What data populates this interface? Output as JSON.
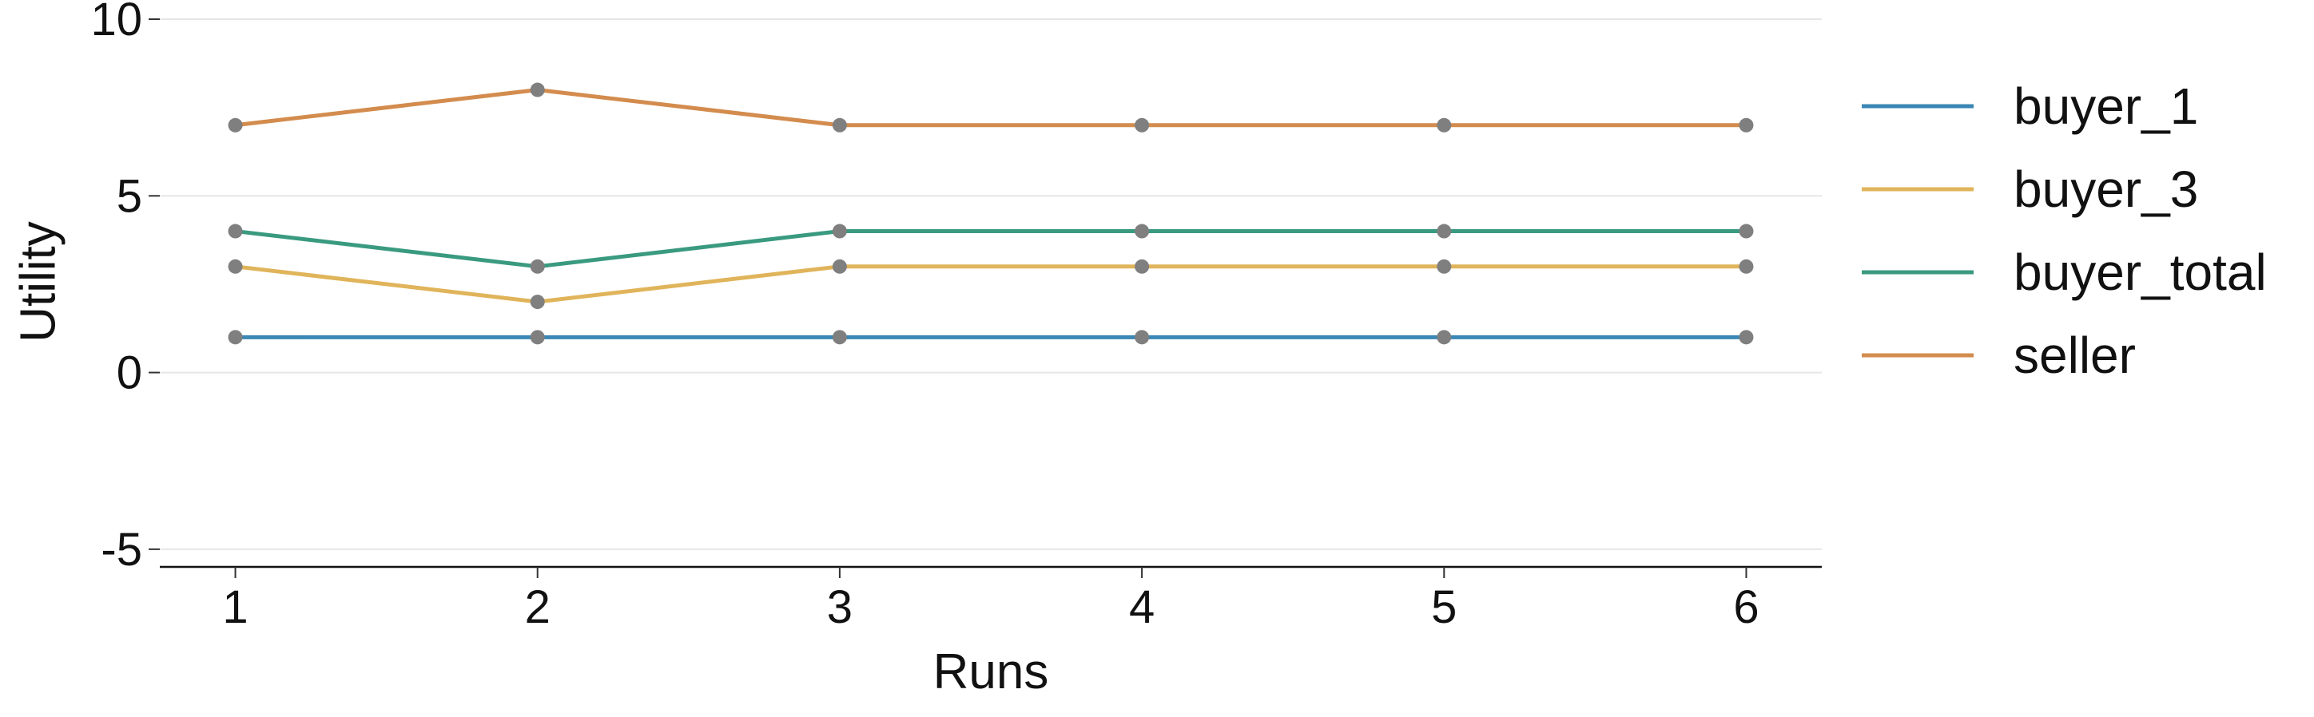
{
  "chart_data": {
    "type": "line",
    "xlabel": "Runs",
    "ylabel": "Utility",
    "x": [
      1,
      2,
      3,
      4,
      5,
      6
    ],
    "xticks": [
      "1",
      "2",
      "3",
      "4",
      "5",
      "6"
    ],
    "yticks": [
      "-5",
      "0",
      "5",
      "10"
    ],
    "ylim": [
      -5.5,
      10
    ],
    "xlim": [
      0.75,
      6.25
    ],
    "grid": "horizontal",
    "legend_position": "right",
    "marker_color": "#7f7f7f",
    "series": [
      {
        "name": "buyer_1",
        "color": "#3a86b4",
        "values": [
          1,
          1,
          1,
          1,
          1,
          1
        ]
      },
      {
        "name": "buyer_3",
        "color": "#e0b45a",
        "values": [
          3,
          2,
          3,
          3,
          3,
          3
        ]
      },
      {
        "name": "buyer_total",
        "color": "#3a9a80",
        "values": [
          4,
          3,
          4,
          4,
          4,
          4
        ]
      },
      {
        "name": "seller",
        "color": "#d38c4e",
        "values": [
          7,
          8,
          7,
          7,
          7,
          7
        ]
      }
    ]
  }
}
